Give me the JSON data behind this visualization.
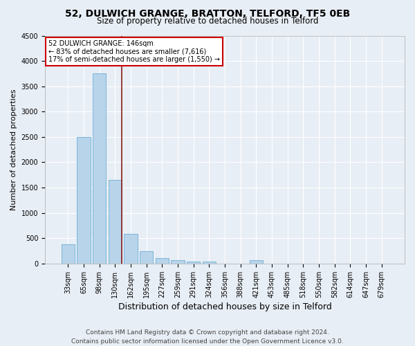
{
  "title1": "52, DULWICH GRANGE, BRATTON, TELFORD, TF5 0EB",
  "title2": "Size of property relative to detached houses in Telford",
  "xlabel": "Distribution of detached houses by size in Telford",
  "ylabel": "Number of detached properties",
  "categories": [
    "33sqm",
    "65sqm",
    "98sqm",
    "130sqm",
    "162sqm",
    "195sqm",
    "227sqm",
    "259sqm",
    "291sqm",
    "324sqm",
    "356sqm",
    "388sqm",
    "421sqm",
    "453sqm",
    "485sqm",
    "518sqm",
    "550sqm",
    "582sqm",
    "614sqm",
    "647sqm",
    "679sqm"
  ],
  "values": [
    380,
    2500,
    3750,
    1650,
    580,
    240,
    110,
    60,
    40,
    40,
    0,
    0,
    60,
    0,
    0,
    0,
    0,
    0,
    0,
    0,
    0
  ],
  "bar_color": "#b8d4ea",
  "bar_edge_color": "#6aaed6",
  "highlight_bar_index": 3,
  "highlight_color": "#8b1a1a",
  "annotation_text": "52 DULWICH GRANGE: 146sqm\n← 83% of detached houses are smaller (7,616)\n17% of semi-detached houses are larger (1,550) →",
  "annotation_box_color": "white",
  "annotation_box_edge_color": "#cc0000",
  "ylim": [
    0,
    4500
  ],
  "yticks": [
    0,
    500,
    1000,
    1500,
    2000,
    2500,
    3000,
    3500,
    4000,
    4500
  ],
  "footer": "Contains HM Land Registry data © Crown copyright and database right 2024.\nContains public sector information licensed under the Open Government Licence v3.0.",
  "background_color": "#e8eef5",
  "plot_background_color": "#e8eef5",
  "grid_color": "#ffffff",
  "title1_fontsize": 10,
  "title2_fontsize": 8.5,
  "xlabel_fontsize": 9,
  "ylabel_fontsize": 8,
  "tick_fontsize": 7,
  "annotation_fontsize": 7,
  "footer_fontsize": 6.5
}
